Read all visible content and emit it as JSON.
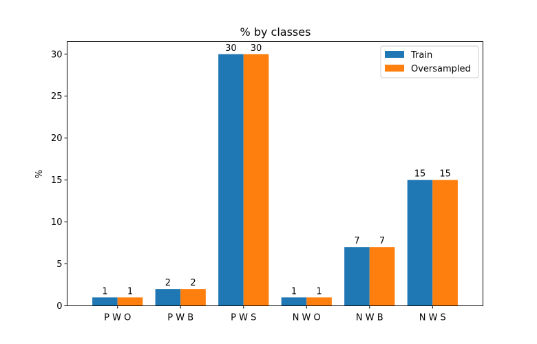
{
  "chart_data": {
    "type": "bar",
    "title": "% by classes",
    "xlabel": "",
    "ylabel": "%",
    "categories": [
      "P W O",
      "P W B",
      "P W S",
      "N W O",
      "N W B",
      "N W S"
    ],
    "series": [
      {
        "name": "Train",
        "color": "#1f77b4",
        "values": [
          1,
          2,
          30,
          1,
          7,
          15
        ]
      },
      {
        "name": "Oversampled",
        "color": "#ff7f0e",
        "values": [
          1,
          2,
          30,
          1,
          7,
          15
        ]
      }
    ],
    "ylim": [
      0,
      31.5
    ],
    "yticks": [
      0,
      5,
      10,
      15,
      20,
      25,
      30
    ],
    "data_labels": true,
    "grid": false,
    "legend_position": "top-right"
  }
}
